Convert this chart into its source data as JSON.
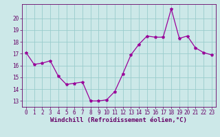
{
  "x": [
    0,
    1,
    2,
    3,
    4,
    5,
    6,
    7,
    8,
    9,
    10,
    11,
    12,
    13,
    14,
    15,
    16,
    17,
    18,
    19,
    20,
    21,
    22,
    23
  ],
  "y": [
    17.1,
    16.1,
    16.2,
    16.4,
    15.1,
    14.4,
    14.5,
    14.6,
    13.0,
    13.0,
    13.1,
    13.8,
    15.3,
    16.9,
    17.8,
    18.5,
    18.4,
    18.4,
    20.8,
    18.3,
    18.5,
    17.5,
    17.1,
    16.9
  ],
  "line_color": "#990099",
  "marker": "*",
  "marker_size": 3,
  "bg_color": "#cce8e8",
  "grid_color": "#99cccc",
  "axis_color": "#660066",
  "xlabel": "Windchill (Refroidissement éolien,°C)",
  "ylim": [
    12.5,
    21.2
  ],
  "yticks": [
    13,
    14,
    15,
    16,
    17,
    18,
    19,
    20
  ],
  "xticks": [
    0,
    1,
    2,
    3,
    4,
    5,
    6,
    7,
    8,
    9,
    10,
    11,
    12,
    13,
    14,
    15,
    16,
    17,
    18,
    19,
    20,
    21,
    22,
    23
  ],
  "font_color": "#660066",
  "tick_fontsize": 5.5,
  "xlabel_fontsize": 6.5
}
